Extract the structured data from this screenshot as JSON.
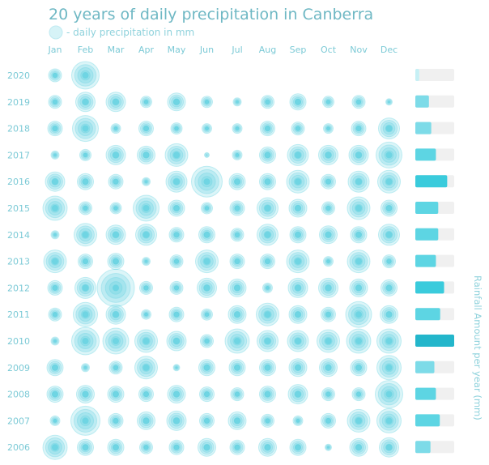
{
  "chart_data": {
    "type": "scatter",
    "title": "20 years of daily precipitation in Canberra",
    "legend": "- daily precipitation in mm",
    "right_axis_label": "Rainfall Amount per year (mm)",
    "months": [
      "Jan",
      "Feb",
      "Mar",
      "Apr",
      "May",
      "Jun",
      "Jul",
      "Aug",
      "Sep",
      "Oct",
      "Nov",
      "Dec"
    ],
    "years": [
      "2020",
      "2019",
      "2018",
      "2017",
      "2016",
      "2015",
      "2014",
      "2013",
      "2012",
      "2011",
      "2010",
      "2009",
      "2008",
      "2007",
      "2006"
    ],
    "max_daily_mm": [
      [
        32,
        68,
        null,
        null,
        null,
        null,
        null,
        null,
        null,
        null,
        null,
        null
      ],
      [
        32,
        48,
        48,
        28,
        44,
        28,
        20,
        32,
        40,
        28,
        32,
        16
      ],
      [
        36,
        64,
        24,
        36,
        28,
        24,
        24,
        36,
        32,
        24,
        36,
        52
      ],
      [
        20,
        28,
        48,
        44,
        56,
        12,
        24,
        40,
        52,
        48,
        48,
        64
      ],
      [
        48,
        40,
        36,
        20,
        52,
        76,
        40,
        40,
        56,
        36,
        52,
        56
      ],
      [
        60,
        32,
        28,
        64,
        40,
        28,
        36,
        52,
        44,
        32,
        56,
        40
      ],
      [
        20,
        56,
        48,
        52,
        36,
        40,
        32,
        52,
        40,
        44,
        40,
        52
      ],
      [
        56,
        36,
        40,
        20,
        32,
        56,
        36,
        36,
        56,
        24,
        56,
        32
      ],
      [
        36,
        52,
        92,
        32,
        32,
        48,
        44,
        24,
        48,
        48,
        44,
        40
      ],
      [
        32,
        60,
        48,
        24,
        36,
        28,
        44,
        56,
        44,
        36,
        64,
        44
      ],
      [
        20,
        68,
        64,
        56,
        48,
        32,
        60,
        52,
        52,
        56,
        60,
        60
      ],
      [
        40,
        20,
        32,
        56,
        16,
        40,
        40,
        40,
        44,
        44,
        40,
        60
      ],
      [
        40,
        44,
        40,
        36,
        44,
        36,
        32,
        40,
        48,
        32,
        32,
        68
      ],
      [
        24,
        72,
        36,
        44,
        48,
        36,
        44,
        32,
        24,
        36,
        56,
        60
      ],
      [
        60,
        40,
        40,
        32,
        36,
        44,
        36,
        44,
        40,
        16,
        44,
        48
      ]
    ],
    "annual_fraction_of_max": [
      0.1,
      0.35,
      0.41,
      0.53,
      0.82,
      0.59,
      0.59,
      0.53,
      0.74,
      0.64,
      1.0,
      0.49,
      0.53,
      0.63,
      0.39
    ]
  },
  "colors": {
    "bubble": "#5fd0e0",
    "bar_low": "#c6f0f5",
    "bar_mid": "#5dd5e3",
    "bar_high": "#23b6cb",
    "track": "#f0f0f0"
  }
}
